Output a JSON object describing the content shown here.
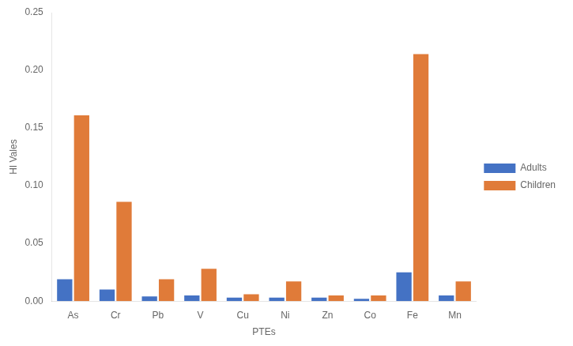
{
  "chart_data": {
    "type": "bar",
    "xlabel": "PTEs",
    "ylabel": "HI Vales",
    "categories": [
      "As",
      "Cr",
      "Pb",
      "V",
      "Cu",
      "Ni",
      "Zn",
      "Co",
      "Fe",
      "Mn"
    ],
    "series": [
      {
        "name": "Adults",
        "color": "#4472C4",
        "values": [
          0.019,
          0.01,
          0.004,
          0.005,
          0.003,
          0.003,
          0.003,
          0.002,
          0.025,
          0.005
        ]
      },
      {
        "name": "Children",
        "color": "#E07B39",
        "values": [
          0.161,
          0.086,
          0.019,
          0.028,
          0.006,
          0.017,
          0.005,
          0.005,
          0.214,
          0.017
        ]
      }
    ],
    "ylim": [
      0,
      0.25
    ],
    "yticks": [
      {
        "value": 0,
        "label": "0.00"
      },
      0.05,
      {
        "value": 0.1,
        "label": "0.10"
      },
      0.15,
      {
        "value": 0.2,
        "label": "0.20"
      },
      0.25
    ],
    "grid": false,
    "legend": "right"
  }
}
